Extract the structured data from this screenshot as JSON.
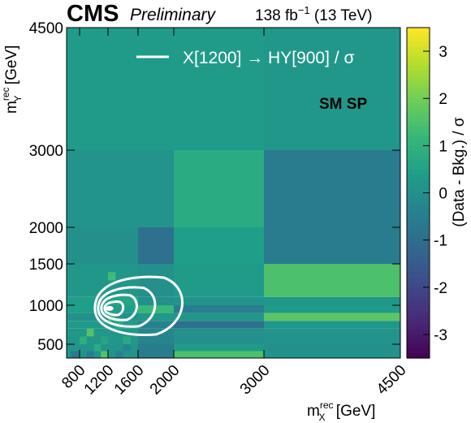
{
  "header": {
    "experiment": "CMS",
    "status": "Preliminary",
    "lumi": "138 fb",
    "lumi_exp": "−1",
    "energy": " (13 TeV)"
  },
  "chart_data": {
    "type": "heatmap",
    "x_axis": {
      "label_main": "m",
      "label_sub": "X",
      "label_sup": "rec",
      "label_unit": " [GeV]",
      "range": [
        650,
        4500
      ],
      "ticks": [
        800,
        1200,
        1600,
        2000,
        3000,
        4500
      ],
      "tick_labels": [
        "800",
        "1200",
        "1600",
        "2000",
        "3000",
        "4500"
      ]
    },
    "y_axis": {
      "label_main": "m",
      "label_sub": "Y",
      "label_sup": "rec",
      "label_unit": " [GeV]",
      "range": [
        300,
        4500
      ],
      "ticks": [
        500,
        1000,
        1500,
        2000,
        3000,
        4500
      ],
      "tick_labels": [
        "500",
        "1000",
        "1500",
        "2000",
        "3000",
        "4500"
      ]
    },
    "colorbar": {
      "label": "(Data - Bkg.) / σ",
      "range": [
        -3.5,
        3.5
      ],
      "ticks": [
        -3,
        -2,
        -1,
        0,
        1,
        2,
        3
      ],
      "tick_labels": [
        "-3",
        "-2",
        "-1",
        "0",
        "1",
        "2",
        "3"
      ],
      "colormap": "viridis"
    },
    "bins": [
      {
        "x": [
          650,
          2000
        ],
        "y": [
          3000,
          4500
        ],
        "z": 0.3
      },
      {
        "x": [
          2000,
          3000
        ],
        "y": [
          3000,
          4500
        ],
        "z": 0.3
      },
      {
        "x": [
          3000,
          4500
        ],
        "y": [
          3000,
          4500
        ],
        "z": 0.2
      },
      {
        "x": [
          650,
          2000
        ],
        "y": [
          2000,
          3000
        ],
        "z": 0.1
      },
      {
        "x": [
          2000,
          3000
        ],
        "y": [
          2000,
          3000
        ],
        "z": 0.8
      },
      {
        "x": [
          3000,
          4500
        ],
        "y": [
          2000,
          3000
        ],
        "z": -0.6
      },
      {
        "x": [
          650,
          1600
        ],
        "y": [
          1500,
          2000
        ],
        "z": 0.0
      },
      {
        "x": [
          1600,
          2000
        ],
        "y": [
          1500,
          2000
        ],
        "z": -0.9
      },
      {
        "x": [
          2000,
          3000
        ],
        "y": [
          1500,
          2000
        ],
        "z": 0.4
      },
      {
        "x": [
          3000,
          4500
        ],
        "y": [
          1500,
          2000
        ],
        "z": -0.6
      },
      {
        "x": [
          650,
          1600
        ],
        "y": [
          1100,
          1500
        ],
        "z": 0.2
      },
      {
        "x": [
          1600,
          2000
        ],
        "y": [
          1100,
          1500
        ],
        "z": 0.0
      },
      {
        "x": [
          2000,
          3000
        ],
        "y": [
          1100,
          1500
        ],
        "z": 0.3
      },
      {
        "x": [
          3000,
          4500
        ],
        "y": [
          1100,
          1500
        ],
        "z": 1.5
      },
      {
        "x": [
          650,
          1200
        ],
        "y": [
          1000,
          1100
        ],
        "z": 0.4
      },
      {
        "x": [
          1200,
          1600
        ],
        "y": [
          1000,
          1100
        ],
        "z": 0.6
      },
      {
        "x": [
          1600,
          2000
        ],
        "y": [
          1000,
          1100
        ],
        "z": 0.0
      },
      {
        "x": [
          2000,
          3000
        ],
        "y": [
          1000,
          1100
        ],
        "z": 0.1
      },
      {
        "x": [
          3000,
          4500
        ],
        "y": [
          1000,
          1100
        ],
        "z": 0.2
      },
      {
        "x": [
          650,
          1600
        ],
        "y": [
          900,
          1000
        ],
        "z": 0.4
      },
      {
        "x": [
          1600,
          2000
        ],
        "y": [
          900,
          1000
        ],
        "z": 1.2
      },
      {
        "x": [
          2000,
          3000
        ],
        "y": [
          900,
          1000
        ],
        "z": -0.5
      },
      {
        "x": [
          3000,
          4500
        ],
        "y": [
          900,
          1000
        ],
        "z": 0.3
      },
      {
        "x": [
          650,
          1600
        ],
        "y": [
          800,
          900
        ],
        "z": 0.0
      },
      {
        "x": [
          1600,
          2000
        ],
        "y": [
          800,
          900
        ],
        "z": 0.2
      },
      {
        "x": [
          2000,
          3000
        ],
        "y": [
          800,
          900
        ],
        "z": 0.2
      },
      {
        "x": [
          3000,
          4500
        ],
        "y": [
          800,
          900
        ],
        "z": 1.7
      },
      {
        "x": [
          650,
          1600
        ],
        "y": [
          700,
          800
        ],
        "z": 0.3
      },
      {
        "x": [
          1600,
          2000
        ],
        "y": [
          700,
          800
        ],
        "z": -0.4
      },
      {
        "x": [
          2000,
          3000
        ],
        "y": [
          700,
          800
        ],
        "z": -0.9
      },
      {
        "x": [
          3000,
          4500
        ],
        "y": [
          700,
          800
        ],
        "z": 0.2
      },
      {
        "x": [
          650,
          1600
        ],
        "y": [
          500,
          700
        ],
        "z": 0.2
      },
      {
        "x": [
          1600,
          2000
        ],
        "y": [
          500,
          700
        ],
        "z": -0.3
      },
      {
        "x": [
          2000,
          3000
        ],
        "y": [
          500,
          700
        ],
        "z": 0.0
      },
      {
        "x": [
          3000,
          4500
        ],
        "y": [
          500,
          700
        ],
        "z": 0.1
      },
      {
        "x": [
          650,
          1600
        ],
        "y": [
          300,
          500
        ],
        "z": 0.1
      },
      {
        "x": [
          1600,
          2000
        ],
        "y": [
          300,
          500
        ],
        "z": -0.6
      },
      {
        "x": [
          2000,
          3000
        ],
        "y": [
          300,
          500
        ],
        "z": 0.3
      },
      {
        "x": [
          3000,
          4500
        ],
        "y": [
          300,
          500
        ],
        "z": 0.0
      },
      {
        "x": [
          2000,
          3000
        ],
        "y": [
          300,
          400
        ],
        "z": 1.5
      },
      {
        "x": [
          3000,
          4500
        ],
        "y": [
          300,
          400
        ],
        "z": 0.1
      },
      {
        "x": [
          800,
          900
        ],
        "y": [
          500,
          600
        ],
        "z": 0.9
      },
      {
        "x": [
          900,
          1000
        ],
        "y": [
          600,
          700
        ],
        "z": 1.6
      },
      {
        "x": [
          1000,
          1100
        ],
        "y": [
          400,
          500
        ],
        "z": 0.8
      },
      {
        "x": [
          1100,
          1200
        ],
        "y": [
          300,
          400
        ],
        "z": 1.6
      },
      {
        "x": [
          1200,
          1300
        ],
        "y": [
          1300,
          1400
        ],
        "z": 1.3
      },
      {
        "x": [
          1300,
          1400
        ],
        "y": [
          700,
          800
        ],
        "z": 0.8
      },
      {
        "x": [
          1400,
          1500
        ],
        "y": [
          500,
          600
        ],
        "z": 0.7
      },
      {
        "x": [
          1200,
          1300
        ],
        "y": [
          800,
          900
        ],
        "z": 1.0
      },
      {
        "x": [
          700,
          800
        ],
        "y": [
          300,
          400
        ],
        "z": -0.7
      },
      {
        "x": [
          900,
          1000
        ],
        "y": [
          300,
          400
        ],
        "z": -0.5
      },
      {
        "x": [
          1300,
          1400
        ],
        "y": [
          300,
          400
        ],
        "z": -0.4
      },
      {
        "x": [
          1400,
          1500
        ],
        "y": [
          400,
          500
        ],
        "z": -0.3
      },
      {
        "x": [
          1100,
          1200
        ],
        "y": [
          500,
          600
        ],
        "z": 0.6
      },
      {
        "x": [
          1500,
          1600
        ],
        "y": [
          700,
          800
        ],
        "z": 0.4
      }
    ],
    "signal_contours": {
      "legend_label": "X[1200] → HY[900] / σ",
      "color": "#ffffff",
      "center": {
        "x": 1220,
        "y": 960
      }
    },
    "annotation": "SM SP"
  }
}
